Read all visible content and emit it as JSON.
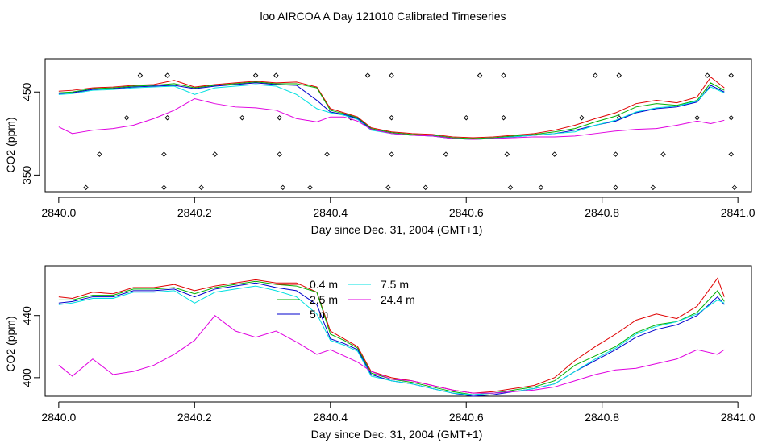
{
  "title": "loo AIRCOA A  Day 121010  Calibrated Timeseries",
  "chart_data": [
    {
      "type": "line",
      "xlabel": "Day since Dec. 31, 2004 (GMT+1)",
      "ylabel": "CO2 (ppm)",
      "xlim": [
        2839.98,
        2841.02
      ],
      "ylim": [
        330,
        490
      ],
      "x_ticks": [
        "2840.0",
        "2840.2",
        "2840.4",
        "2840.6",
        "2840.8",
        "2841.0"
      ],
      "y_ticks": [
        "350",
        "450"
      ],
      "grid": false,
      "legend": "none",
      "x": [
        2840.0,
        2840.02,
        2840.05,
        2840.08,
        2840.11,
        2840.14,
        2840.17,
        2840.2,
        2840.23,
        2840.26,
        2840.29,
        2840.32,
        2840.35,
        2840.38,
        2840.4,
        2840.42,
        2840.44,
        2840.46,
        2840.49,
        2840.52,
        2840.55,
        2840.58,
        2840.61,
        2840.64,
        2840.67,
        2840.7,
        2840.73,
        2840.76,
        2840.79,
        2840.82,
        2840.85,
        2840.88,
        2840.91,
        2840.94,
        2840.96,
        2840.98
      ],
      "series": [
        {
          "name": "0.4 m",
          "color": "#df0000",
          "values": [
            451,
            452,
            455,
            456,
            458,
            459,
            464,
            456,
            459,
            461,
            463,
            461,
            462,
            456,
            430,
            425,
            420,
            407,
            402,
            400,
            399,
            396,
            395,
            396,
            398,
            400,
            404,
            410,
            418,
            425,
            436,
            440,
            437,
            444,
            468,
            455
          ]
        },
        {
          "name": "2.5 m",
          "color": "#00b000",
          "values": [
            449,
            450,
            454,
            455,
            457,
            458,
            460,
            455,
            458,
            460,
            462,
            460,
            460,
            455,
            428,
            424,
            419,
            406,
            401,
            399,
            398,
            395,
            394,
            395,
            397,
            399,
            402,
            406,
            414,
            421,
            432,
            436,
            434,
            440,
            461,
            452
          ]
        },
        {
          "name": "5 m",
          "color": "#0000cc",
          "values": [
            448,
            449,
            453,
            454,
            456,
            457,
            458,
            454,
            457,
            459,
            461,
            459,
            458,
            440,
            426,
            423,
            418,
            405,
            400,
            398,
            397,
            394,
            393,
            394,
            396,
            398,
            400,
            404,
            410,
            415,
            425,
            430,
            432,
            438,
            458,
            450
          ]
        },
        {
          "name": "7.5 m",
          "color": "#00e0e0",
          "values": [
            447,
            448,
            452,
            453,
            455,
            456,
            457,
            447,
            455,
            457,
            459,
            457,
            447,
            430,
            425,
            422,
            417,
            404,
            400,
            398,
            397,
            394,
            393,
            394,
            396,
            398,
            400,
            402,
            410,
            416,
            426,
            431,
            433,
            439,
            456,
            449
          ]
        },
        {
          "name": "24.4 m",
          "color": "#e000e0",
          "values": [
            408,
            400,
            404,
            406,
            410,
            418,
            428,
            442,
            436,
            432,
            431,
            428,
            418,
            414,
            420,
            420,
            415,
            405,
            400,
            398,
            397,
            394,
            393,
            394,
            395,
            396,
            396,
            397,
            400,
            403,
            405,
            406,
            410,
            415,
            412,
            416
          ]
        }
      ],
      "markers": {
        "symbol": "diamond",
        "points": [
          [
            2840.04,
            335
          ],
          [
            2840.06,
            375
          ],
          [
            2840.1,
            419
          ],
          [
            2840.12,
            470
          ],
          [
            2840.155,
            335
          ],
          [
            2840.155,
            375
          ],
          [
            2840.16,
            419
          ],
          [
            2840.16,
            470
          ],
          [
            2840.21,
            335
          ],
          [
            2840.23,
            375
          ],
          [
            2840.27,
            419
          ],
          [
            2840.29,
            470
          ],
          [
            2840.32,
            470
          ],
          [
            2840.325,
            419
          ],
          [
            2840.325,
            375
          ],
          [
            2840.33,
            335
          ],
          [
            2840.37,
            335
          ],
          [
            2840.395,
            375
          ],
          [
            2840.43,
            419
          ],
          [
            2840.455,
            470
          ],
          [
            2840.485,
            335
          ],
          [
            2840.49,
            375
          ],
          [
            2840.49,
            419
          ],
          [
            2840.49,
            470
          ],
          [
            2840.54,
            335
          ],
          [
            2840.57,
            375
          ],
          [
            2840.6,
            419
          ],
          [
            2840.62,
            470
          ],
          [
            2840.655,
            470
          ],
          [
            2840.655,
            419
          ],
          [
            2840.66,
            375
          ],
          [
            2840.665,
            335
          ],
          [
            2840.71,
            335
          ],
          [
            2840.73,
            375
          ],
          [
            2840.77,
            419
          ],
          [
            2840.79,
            470
          ],
          [
            2840.825,
            470
          ],
          [
            2840.825,
            419
          ],
          [
            2840.82,
            375
          ],
          [
            2840.82,
            335
          ],
          [
            2840.875,
            335
          ],
          [
            2840.89,
            375
          ],
          [
            2840.94,
            419
          ],
          [
            2840.955,
            470
          ],
          [
            2840.99,
            470
          ],
          [
            2840.99,
            419
          ],
          [
            2840.99,
            375
          ],
          [
            2840.995,
            335
          ]
        ]
      }
    },
    {
      "type": "line",
      "xlabel": "Day since Dec. 31, 2004 (GMT+1)",
      "ylabel": "CO2 (ppm)",
      "xlim": [
        2839.98,
        2841.02
      ],
      "ylim": [
        388,
        472
      ],
      "x_ticks": [
        "2840.0",
        "2840.2",
        "2840.4",
        "2840.6",
        "2840.8",
        "2841.0"
      ],
      "y_ticks": [
        "400",
        "440"
      ],
      "grid": false,
      "legend": "top-center",
      "x": [
        2840.0,
        2840.02,
        2840.05,
        2840.08,
        2840.11,
        2840.14,
        2840.17,
        2840.2,
        2840.23,
        2840.26,
        2840.29,
        2840.32,
        2840.35,
        2840.38,
        2840.4,
        2840.42,
        2840.44,
        2840.46,
        2840.49,
        2840.52,
        2840.55,
        2840.58,
        2840.61,
        2840.64,
        2840.67,
        2840.7,
        2840.73,
        2840.76,
        2840.79,
        2840.82,
        2840.85,
        2840.88,
        2840.91,
        2840.94,
        2840.97,
        2840.98
      ],
      "series": [
        {
          "name": "0.4 m",
          "color": "#df0000",
          "values": [
            452,
            451,
            455,
            454,
            458,
            458,
            460,
            456,
            459,
            461,
            463,
            461,
            461,
            455,
            430,
            425,
            420,
            404,
            400,
            398,
            395,
            392,
            390,
            391,
            393,
            395,
            400,
            411,
            420,
            428,
            437,
            441,
            438,
            446,
            464,
            452
          ]
        },
        {
          "name": "2.5 m",
          "color": "#00b000",
          "values": [
            450,
            450,
            453,
            453,
            457,
            457,
            458,
            454,
            458,
            460,
            462,
            460,
            459,
            455,
            428,
            424,
            419,
            403,
            399,
            397,
            394,
            391,
            389,
            390,
            392,
            394,
            398,
            408,
            414,
            420,
            429,
            434,
            436,
            442,
            456,
            449
          ]
        },
        {
          "name": "5 m",
          "color": "#0000cc",
          "values": [
            448,
            449,
            452,
            452,
            456,
            456,
            457,
            452,
            457,
            459,
            461,
            458,
            456,
            447,
            425,
            422,
            418,
            402,
            398,
            396,
            393,
            390,
            388,
            389,
            391,
            393,
            396,
            404,
            411,
            418,
            426,
            431,
            434,
            440,
            452,
            447
          ]
        },
        {
          "name": "7.5 m",
          "color": "#00e0e0",
          "values": [
            447,
            448,
            451,
            451,
            455,
            455,
            456,
            448,
            455,
            457,
            459,
            456,
            452,
            441,
            424,
            421,
            417,
            401,
            398,
            396,
            393,
            390,
            389,
            390,
            391,
            393,
            396,
            404,
            412,
            419,
            428,
            433,
            436,
            441,
            450,
            448
          ]
        },
        {
          "name": "24.4 m",
          "color": "#e000e0",
          "values": [
            408,
            401,
            412,
            402,
            404,
            408,
            415,
            424,
            440,
            430,
            426,
            430,
            423,
            415,
            418,
            414,
            410,
            404,
            399,
            398,
            395,
            392,
            390,
            390,
            391,
            392,
            394,
            398,
            402,
            405,
            406,
            409,
            412,
            418,
            415,
            418
          ]
        }
      ]
    }
  ]
}
